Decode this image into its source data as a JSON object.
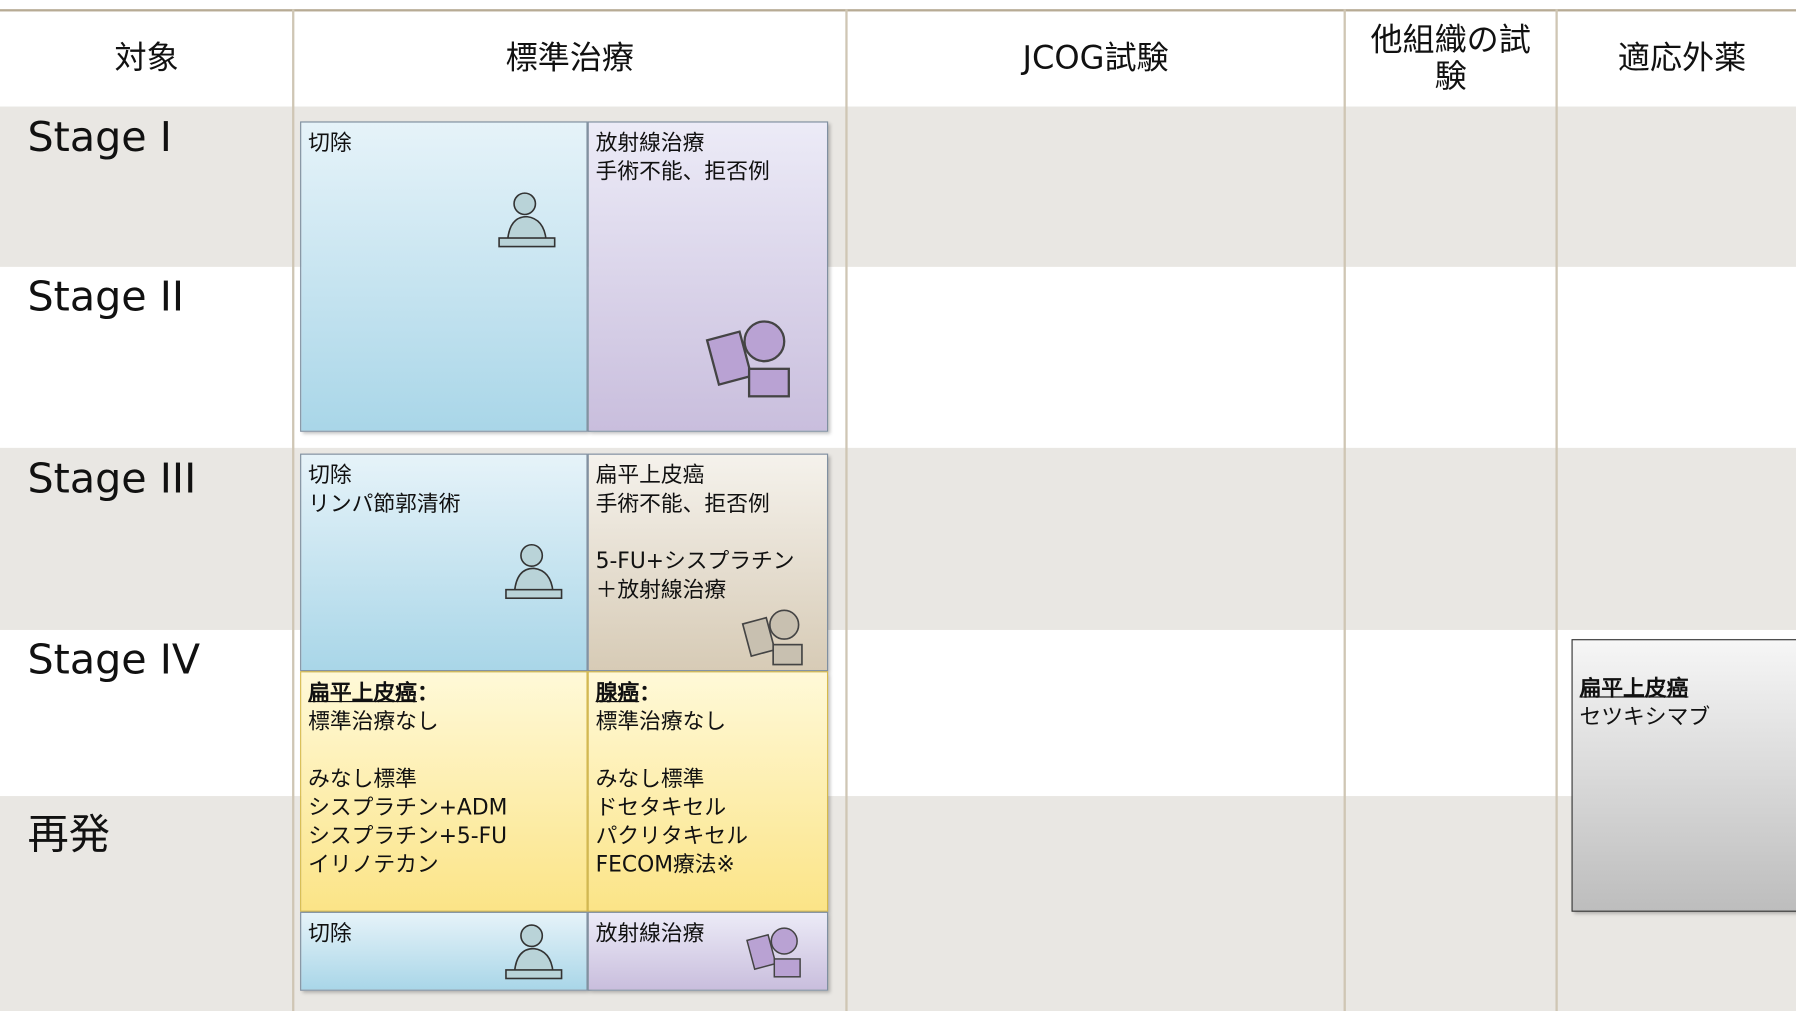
{
  "table": {
    "columns": [
      "対象",
      "標準治療",
      "JCOG試験",
      "他組織の試験",
      "適応外薬"
    ],
    "rows": [
      "Stage I",
      "Stage II",
      "Stage III",
      "Stage IV",
      "再発"
    ]
  },
  "boxes": [
    {
      "groups": [
        [
          "切除"
        ]
      ]
    },
    {
      "groups": [
        [
          "放射線治療",
          "手術不能、拒否例"
        ]
      ]
    },
    {
      "groups": [
        [
          "切除",
          "リンパ節郭清術"
        ]
      ]
    },
    {
      "groups": [
        [
          "扁平上皮癌",
          "手術不能、拒否例"
        ],
        [
          "5-FU+シスプラチン",
          "＋放射線治療"
        ]
      ]
    },
    {
      "heading": "扁平上皮癌",
      "colon": "：",
      "groups": [
        [
          "標準治療なし"
        ],
        [
          "みなし標準",
          "シスプラチン+ADM",
          "シスプラチン+5-FU",
          "イリノテカン"
        ]
      ]
    },
    {
      "heading": "腺癌",
      "colon": "：",
      "groups": [
        [
          "標準治療なし"
        ],
        [
          "みなし標準",
          "ドセタキセル",
          "パクリタキセル",
          "FECOM療法※"
        ]
      ]
    },
    {
      "groups": [
        [
          "切除"
        ]
      ]
    },
    {
      "groups": [
        [
          "放射線治療"
        ]
      ]
    },
    {
      "heading": "扁平上皮癌",
      "groups": [
        [
          "セツキシマブ"
        ]
      ]
    }
  ]
}
